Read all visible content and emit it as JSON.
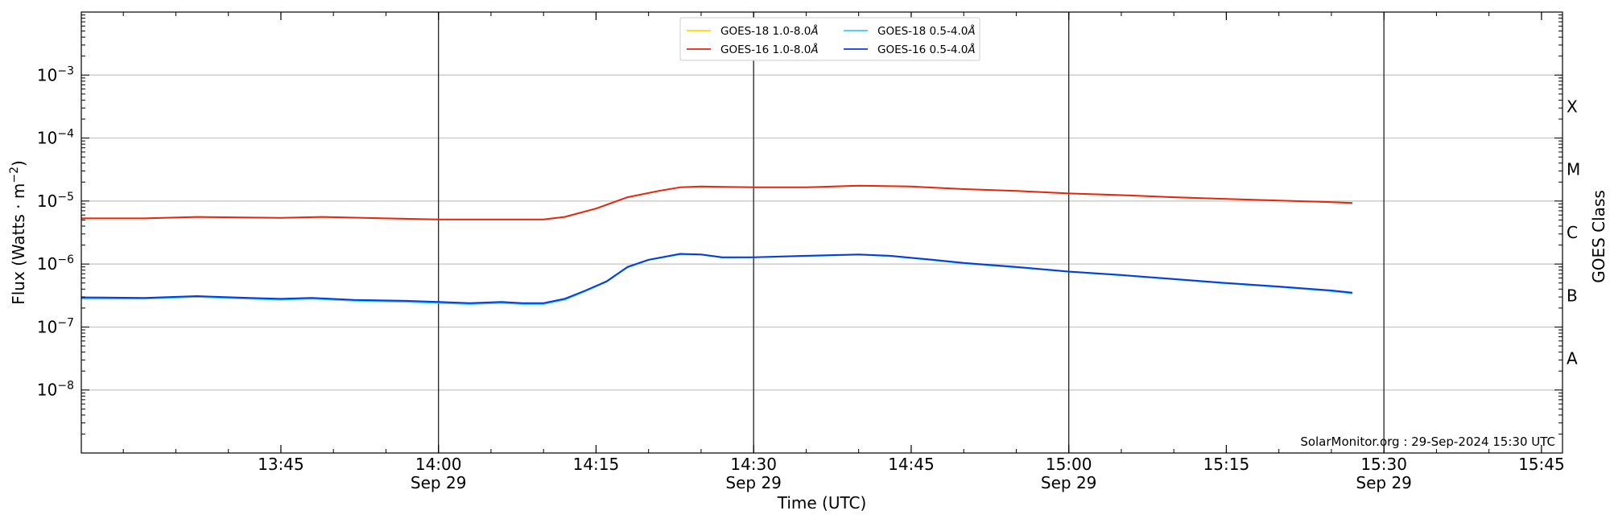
{
  "chart_data": {
    "type": "line",
    "xlabel": "Time (UTC)",
    "ylabel": "Flux (Watts · m",
    "ylabel_exponent": "−2",
    "ylabel_close": ")",
    "right_label": "GOES Class",
    "y_scale": "log",
    "ylim": [
      1e-09,
      0.01
    ],
    "xlim": [
      "13:26",
      "15:47"
    ],
    "grid": "horizontal at decades; vertical lines at 14:00, 14:30, 15:00, 15:30",
    "legend_placement": "top-center",
    "x_ticks": [
      {
        "time": "13:45",
        "label": "13:45",
        "date": ""
      },
      {
        "time": "14:00",
        "label": "14:00",
        "date": "Sep 29"
      },
      {
        "time": "14:15",
        "label": "14:15",
        "date": ""
      },
      {
        "time": "14:30",
        "label": "14:30",
        "date": "Sep 29"
      },
      {
        "time": "14:45",
        "label": "14:45",
        "date": ""
      },
      {
        "time": "15:00",
        "label": "15:00",
        "date": "Sep 29"
      },
      {
        "time": "15:15",
        "label": "15:15",
        "date": ""
      },
      {
        "time": "15:30",
        "label": "15:30",
        "date": "Sep 29"
      },
      {
        "time": "15:45",
        "label": "15:45",
        "date": ""
      }
    ],
    "y_ticks": [
      {
        "exp": -3,
        "label_base": "10",
        "label_exp": "−3"
      },
      {
        "exp": -4,
        "label_base": "10",
        "label_exp": "−4"
      },
      {
        "exp": -5,
        "label_base": "10",
        "label_exp": "−5"
      },
      {
        "exp": -6,
        "label_base": "10",
        "label_exp": "−6"
      },
      {
        "exp": -7,
        "label_base": "10",
        "label_exp": "−7"
      },
      {
        "exp": -8,
        "label_base": "10",
        "label_exp": "−8"
      }
    ],
    "goes_classes": [
      {
        "label": "X",
        "center_exp": -3.5
      },
      {
        "label": "M",
        "center_exp": -4.5
      },
      {
        "label": "C",
        "center_exp": -5.5
      },
      {
        "label": "B",
        "center_exp": -6.5
      },
      {
        "label": "A",
        "center_exp": -7.5
      }
    ],
    "legend": {
      "col1": [
        {
          "series": 0,
          "text": "GOES-18 1.0-8.0",
          "angstrom": "Å"
        },
        {
          "series": 1,
          "text": "GOES-16 1.0-8.0",
          "angstrom": "Å"
        }
      ],
      "col2": [
        {
          "series": 2,
          "text": "GOES-18 0.5-4.0",
          "angstrom": "Å"
        },
        {
          "series": 3,
          "text": "GOES-16 0.5-4.0",
          "angstrom": "Å"
        }
      ]
    },
    "credit": "SolarMonitor.org : 29-Sep-2024 15:30 UTC",
    "series": [
      {
        "name": "GOES-18 1.0-8.0Å",
        "color": "#ffd700",
        "points": [
          [
            "13:26",
            5.3e-06
          ],
          [
            "13:32",
            5.3e-06
          ],
          [
            "13:37",
            5.6e-06
          ],
          [
            "13:45",
            5.4e-06
          ],
          [
            "13:49",
            5.6e-06
          ],
          [
            "13:55",
            5.3e-06
          ],
          [
            "14:00",
            5.1e-06
          ],
          [
            "14:05",
            5.1e-06
          ],
          [
            "14:10",
            5.1e-06
          ],
          [
            "14:12",
            5.6e-06
          ],
          [
            "14:15",
            7.6e-06
          ],
          [
            "14:18",
            1.15e-05
          ],
          [
            "14:21",
            1.45e-05
          ],
          [
            "14:23",
            1.65e-05
          ],
          [
            "14:25",
            1.7e-05
          ],
          [
            "14:30",
            1.65e-05
          ],
          [
            "14:35",
            1.65e-05
          ],
          [
            "14:40",
            1.75e-05
          ],
          [
            "14:45",
            1.7e-05
          ],
          [
            "14:50",
            1.55e-05
          ],
          [
            "14:55",
            1.45e-05
          ],
          [
            "15:00",
            1.32e-05
          ],
          [
            "15:05",
            1.24e-05
          ],
          [
            "15:10",
            1.15e-05
          ],
          [
            "15:15",
            1.08e-05
          ],
          [
            "15:20",
            1.02e-05
          ],
          [
            "15:25",
            9.6e-06
          ],
          [
            "15:27",
            9.3e-06
          ]
        ]
      },
      {
        "name": "GOES-16 1.0-8.0Å",
        "color": "#e8240c",
        "points": [
          [
            "13:26",
            5.3e-06
          ],
          [
            "13:32",
            5.3e-06
          ],
          [
            "13:37",
            5.6e-06
          ],
          [
            "13:45",
            5.4e-06
          ],
          [
            "13:49",
            5.6e-06
          ],
          [
            "13:55",
            5.3e-06
          ],
          [
            "14:00",
            5.1e-06
          ],
          [
            "14:05",
            5.1e-06
          ],
          [
            "14:10",
            5.1e-06
          ],
          [
            "14:12",
            5.6e-06
          ],
          [
            "14:15",
            7.6e-06
          ],
          [
            "14:18",
            1.15e-05
          ],
          [
            "14:21",
            1.45e-05
          ],
          [
            "14:23",
            1.65e-05
          ],
          [
            "14:25",
            1.7e-05
          ],
          [
            "14:30",
            1.65e-05
          ],
          [
            "14:35",
            1.65e-05
          ],
          [
            "14:40",
            1.75e-05
          ],
          [
            "14:45",
            1.7e-05
          ],
          [
            "14:50",
            1.55e-05
          ],
          [
            "14:55",
            1.45e-05
          ],
          [
            "15:00",
            1.32e-05
          ],
          [
            "15:05",
            1.24e-05
          ],
          [
            "15:10",
            1.15e-05
          ],
          [
            "15:15",
            1.08e-05
          ],
          [
            "15:20",
            1.02e-05
          ],
          [
            "15:25",
            9.6e-06
          ],
          [
            "15:27",
            9.3e-06
          ]
        ]
      },
      {
        "name": "GOES-18 0.5-4.0Å",
        "color": "#33ccff",
        "points": [
          [
            "13:26",
            2.8e-07
          ],
          [
            "13:32",
            2.8e-07
          ],
          [
            "13:37",
            3e-07
          ],
          [
            "13:42",
            2.8e-07
          ],
          [
            "13:45",
            2.7e-07
          ],
          [
            "13:48",
            2.8e-07
          ],
          [
            "13:52",
            2.6e-07
          ],
          [
            "13:57",
            2.5e-07
          ],
          [
            "14:00",
            2.4e-07
          ],
          [
            "14:03",
            2.3e-07
          ],
          [
            "14:06",
            2.4e-07
          ],
          [
            "14:08",
            2.3e-07
          ],
          [
            "14:10",
            2.3e-07
          ],
          [
            "14:12",
            2.7e-07
          ],
          [
            "14:14",
            3.7e-07
          ],
          [
            "14:16",
            5.2e-07
          ],
          [
            "14:18",
            8.8e-07
          ],
          [
            "14:20",
            1.15e-06
          ],
          [
            "14:23",
            1.42e-06
          ],
          [
            "14:25",
            1.4e-06
          ],
          [
            "14:27",
            1.26e-06
          ],
          [
            "14:30",
            1.27e-06
          ],
          [
            "14:35",
            1.33e-06
          ],
          [
            "14:40",
            1.4e-06
          ],
          [
            "14:43",
            1.33e-06
          ],
          [
            "14:47",
            1.15e-06
          ],
          [
            "14:50",
            1.02e-06
          ],
          [
            "14:55",
            8.8e-07
          ],
          [
            "15:00",
            7.5e-07
          ],
          [
            "15:05",
            6.6e-07
          ],
          [
            "15:10",
            5.7e-07
          ],
          [
            "15:15",
            4.9e-07
          ],
          [
            "15:20",
            4.3e-07
          ],
          [
            "15:25",
            3.7e-07
          ],
          [
            "15:27",
            3.4e-07
          ]
        ]
      },
      {
        "name": "GOES-16 0.5-4.0Å",
        "color": "#0b3bd6",
        "points": [
          [
            "13:26",
            2.95e-07
          ],
          [
            "13:32",
            2.9e-07
          ],
          [
            "13:37",
            3.1e-07
          ],
          [
            "13:42",
            2.9e-07
          ],
          [
            "13:45",
            2.8e-07
          ],
          [
            "13:48",
            2.9e-07
          ],
          [
            "13:52",
            2.7e-07
          ],
          [
            "13:57",
            2.6e-07
          ],
          [
            "14:00",
            2.5e-07
          ],
          [
            "14:03",
            2.4e-07
          ],
          [
            "14:06",
            2.5e-07
          ],
          [
            "14:08",
            2.4e-07
          ],
          [
            "14:10",
            2.4e-07
          ],
          [
            "14:12",
            2.8e-07
          ],
          [
            "14:14",
            3.8e-07
          ],
          [
            "14:16",
            5.3e-07
          ],
          [
            "14:18",
            9e-07
          ],
          [
            "14:20",
            1.17e-06
          ],
          [
            "14:23",
            1.45e-06
          ],
          [
            "14:25",
            1.42e-06
          ],
          [
            "14:27",
            1.28e-06
          ],
          [
            "14:30",
            1.28e-06
          ],
          [
            "14:35",
            1.35e-06
          ],
          [
            "14:40",
            1.42e-06
          ],
          [
            "14:43",
            1.35e-06
          ],
          [
            "14:47",
            1.17e-06
          ],
          [
            "14:50",
            1.04e-06
          ],
          [
            "14:55",
            9e-07
          ],
          [
            "15:00",
            7.6e-07
          ],
          [
            "15:05",
            6.7e-07
          ],
          [
            "15:10",
            5.8e-07
          ],
          [
            "15:15",
            5e-07
          ],
          [
            "15:20",
            4.4e-07
          ],
          [
            "15:25",
            3.8e-07
          ],
          [
            "15:27",
            3.5e-07
          ]
        ]
      }
    ]
  }
}
